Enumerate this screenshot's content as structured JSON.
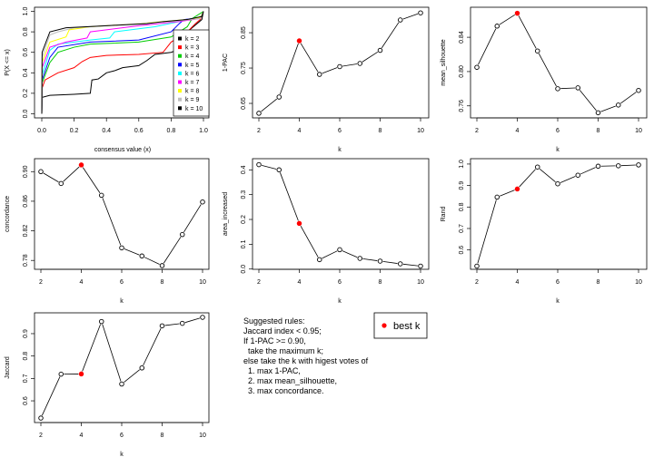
{
  "chart_data": [
    {
      "type": "line",
      "xlabel": "consensus value (x)",
      "ylabel": "P(X <= x)",
      "xlim": [
        0,
        1
      ],
      "ylim": [
        -0.04,
        1.04
      ],
      "xticks": [
        "0.0",
        "0.2",
        "0.4",
        "0.6",
        "0.8",
        "1.0"
      ],
      "yticks": [
        "0.0",
        "0.2",
        "0.4",
        "0.6",
        "0.8",
        "1.0"
      ],
      "legend_position": "right",
      "series": [
        {
          "name": "k = 2",
          "color": "#000000",
          "x": [
            0,
            0.002,
            0.05,
            0.2,
            0.3,
            0.31,
            0.35,
            0.4,
            0.45,
            0.5,
            0.6,
            0.65,
            0.7,
            0.8,
            0.85,
            0.9,
            0.99,
            1
          ],
          "y": [
            0,
            0.16,
            0.18,
            0.19,
            0.2,
            0.33,
            0.34,
            0.4,
            0.42,
            0.45,
            0.47,
            0.52,
            0.58,
            0.6,
            0.63,
            0.8,
            0.92,
            1
          ]
        },
        {
          "name": "k = 3",
          "color": "#FF0000",
          "x": [
            0,
            0.002,
            0.02,
            0.1,
            0.2,
            0.25,
            0.3,
            0.4,
            0.6,
            0.75,
            0.8,
            0.9,
            0.95,
            0.98,
            1
          ],
          "y": [
            0,
            0.25,
            0.33,
            0.4,
            0.45,
            0.51,
            0.55,
            0.57,
            0.58,
            0.6,
            0.7,
            0.8,
            0.88,
            0.92,
            1
          ]
        },
        {
          "name": "k = 4",
          "color": "#00CC00",
          "x": [
            0,
            0.002,
            0.05,
            0.1,
            0.2,
            0.3,
            0.6,
            0.8,
            0.9,
            0.93,
            1
          ],
          "y": [
            0,
            0.3,
            0.5,
            0.6,
            0.65,
            0.68,
            0.7,
            0.75,
            0.85,
            0.93,
            1
          ]
        },
        {
          "name": "k = 5",
          "color": "#0000FF",
          "x": [
            0,
            0.002,
            0.05,
            0.1,
            0.3,
            0.6,
            0.8,
            0.85,
            0.88,
            0.98,
            1
          ],
          "y": [
            0,
            0.33,
            0.55,
            0.65,
            0.7,
            0.72,
            0.8,
            0.88,
            0.92,
            0.94,
            1
          ]
        },
        {
          "name": "k = 6",
          "color": "#00FFFF",
          "x": [
            0,
            0.002,
            0.05,
            0.1,
            0.3,
            0.42,
            0.45,
            0.7,
            0.85,
            0.98,
            1
          ],
          "y": [
            0,
            0.38,
            0.62,
            0.68,
            0.72,
            0.74,
            0.8,
            0.85,
            0.9,
            0.94,
            1
          ]
        },
        {
          "name": "k = 7",
          "color": "#FF00FF",
          "x": [
            0,
            0.002,
            0.05,
            0.15,
            0.28,
            0.3,
            0.6,
            0.85,
            0.98,
            1
          ],
          "y": [
            0,
            0.45,
            0.65,
            0.7,
            0.74,
            0.8,
            0.86,
            0.9,
            0.93,
            1
          ]
        },
        {
          "name": "k = 8",
          "color": "#FFFF00",
          "x": [
            0,
            0.002,
            0.05,
            0.15,
            0.17,
            0.3,
            0.6,
            0.9,
            0.98,
            1
          ],
          "y": [
            0,
            0.5,
            0.7,
            0.75,
            0.82,
            0.85,
            0.88,
            0.92,
            0.94,
            1
          ]
        },
        {
          "name": "k = 9",
          "color": "#BEBEBE",
          "x": [
            0,
            0.002,
            0.05,
            0.1,
            0.2,
            0.5,
            0.8,
            0.98,
            1
          ],
          "y": [
            0,
            0.55,
            0.77,
            0.8,
            0.84,
            0.87,
            0.9,
            0.93,
            1
          ]
        },
        {
          "name": "k = 10",
          "color": "#000000",
          "x": [
            0,
            0.002,
            0.05,
            0.15,
            0.4,
            0.65,
            0.75,
            0.9,
            0.99,
            1
          ],
          "y": [
            0,
            0.6,
            0.8,
            0.84,
            0.86,
            0.88,
            0.9,
            0.92,
            0.95,
            1
          ]
        }
      ]
    },
    {
      "type": "line",
      "xlabel": "k",
      "ylabel": "1-PAC",
      "x": [
        2,
        3,
        4,
        5,
        6,
        7,
        8,
        9,
        10
      ],
      "values": [
        0.622,
        0.668,
        0.827,
        0.732,
        0.754,
        0.763,
        0.8,
        0.886,
        0.906
      ],
      "best_k": 4,
      "ylim": [
        0.609,
        0.922
      ],
      "yticks": [
        "0.65",
        "0.75",
        "0.85"
      ],
      "xticks": [
        "2",
        "4",
        "6",
        "8",
        "10"
      ]
    },
    {
      "type": "line",
      "xlabel": "k",
      "ylabel": "mean_silhouette",
      "x": [
        2,
        3,
        4,
        5,
        6,
        7,
        8,
        9,
        10
      ],
      "values": [
        0.805,
        0.853,
        0.868,
        0.824,
        0.78,
        0.781,
        0.752,
        0.761,
        0.778
      ],
      "best_k": 4,
      "ylim": [
        0.746,
        0.875
      ],
      "yticks": [
        "0.76",
        "0.80",
        "0.84"
      ],
      "xticks": [
        "2",
        "4",
        "6",
        "8",
        "10"
      ]
    },
    {
      "type": "line",
      "xlabel": "k",
      "ylabel": "concordance",
      "x": [
        2,
        3,
        4,
        5,
        6,
        7,
        8,
        9,
        10
      ],
      "values": [
        0.9,
        0.884,
        0.909,
        0.868,
        0.797,
        0.786,
        0.773,
        0.815,
        0.859
      ],
      "best_k": 4,
      "ylim": [
        0.768,
        0.9175
      ],
      "yticks": [
        "0.78",
        "0.82",
        "0.86",
        "0.90"
      ],
      "xticks": [
        "2",
        "4",
        "6",
        "8",
        "10"
      ]
    },
    {
      "type": "line",
      "xlabel": "k",
      "ylabel": "area_increased",
      "x": [
        2,
        3,
        4,
        5,
        6,
        7,
        8,
        9,
        10
      ],
      "values": [
        0.421,
        0.4,
        0.184,
        0.038,
        0.078,
        0.043,
        0.032,
        0.021,
        0.012
      ],
      "best_k": 4,
      "ylim": [
        -0.001,
        0.445
      ],
      "yticks": [
        "0.0",
        "0.1",
        "0.2",
        "0.3",
        "0.4"
      ],
      "xticks": [
        "2",
        "4",
        "6",
        "8",
        "10"
      ]
    },
    {
      "type": "line",
      "xlabel": "k",
      "ylabel": "Rand",
      "x": [
        2,
        3,
        4,
        5,
        6,
        7,
        8,
        9,
        10
      ],
      "values": [
        0.525,
        0.846,
        0.884,
        0.986,
        0.908,
        0.948,
        0.99,
        0.992,
        0.996
      ],
      "best_k": 4,
      "ylim": [
        0.51,
        1.025
      ],
      "yticks": [
        "0.6",
        "0.7",
        "0.8",
        "0.9",
        "1.0"
      ],
      "xticks": [
        "2",
        "4",
        "6",
        "8",
        "10"
      ]
    },
    {
      "type": "line",
      "xlabel": "k",
      "ylabel": "Jaccard",
      "x": [
        2,
        3,
        4,
        5,
        6,
        7,
        8,
        9,
        10
      ],
      "values": [
        0.523,
        0.719,
        0.72,
        0.954,
        0.675,
        0.747,
        0.935,
        0.946,
        0.973
      ],
      "best_k": 4,
      "ylim": [
        0.503,
        0.993
      ],
      "yticks": [
        "0.6",
        "0.7",
        "0.8",
        "0.9"
      ],
      "xticks": [
        "2",
        "4",
        "6",
        "8",
        "10"
      ]
    }
  ],
  "best_k_legend": {
    "label": "best k",
    "color": "#FF0000"
  },
  "rules": [
    "Suggested rules:",
    "Jaccard index < 0.95;",
    "If 1-PAC >= 0.90,",
    "  take the maximum k;",
    "else take the k with higest votes of",
    "  1. max 1-PAC,",
    "  2. max mean_silhouette,",
    "  3. max concordance."
  ]
}
